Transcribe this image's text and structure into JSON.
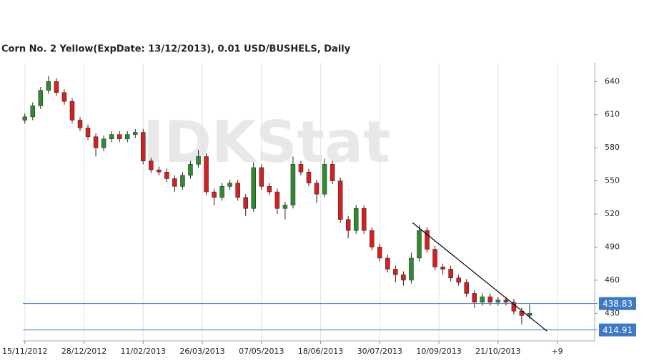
{
  "chart_data": {
    "type": "candlestick",
    "title": "Corn  No. 2 Yellow(ExpDate: 13/12/2013), 0.01 USD/BUSHELS, Daily",
    "watermark": "IDKStat",
    "x": [
      0,
      4,
      8,
      12,
      16,
      20,
      24,
      28,
      32,
      36,
      40,
      44,
      48,
      52,
      56,
      60,
      64,
      68,
      72,
      76,
      80,
      84,
      88,
      92,
      96,
      100,
      104,
      108,
      112,
      116,
      120,
      124,
      128,
      132,
      136,
      140,
      144,
      148,
      152,
      156,
      160,
      164,
      168,
      172,
      176,
      180,
      184,
      188,
      192,
      196,
      200,
      204,
      208,
      212,
      216,
      220,
      224,
      228,
      232,
      236,
      240,
      244,
      248,
      252,
      256
    ],
    "open": [
      605,
      608,
      618,
      632,
      640,
      630,
      622,
      605,
      598,
      590,
      580,
      588,
      592,
      588,
      592,
      594,
      568,
      560,
      558,
      552,
      545,
      555,
      565,
      572,
      540,
      535,
      545,
      548,
      535,
      525,
      562,
      545,
      540,
      525,
      528,
      565,
      558,
      548,
      538,
      565,
      550,
      515,
      505,
      525,
      505,
      490,
      480,
      470,
      465,
      460,
      480,
      505,
      488,
      472,
      470,
      462,
      458,
      448,
      440,
      445,
      440,
      442,
      440,
      432,
      428
    ],
    "high": [
      611,
      621,
      635,
      645,
      643,
      633,
      625,
      608,
      601,
      593,
      591,
      595,
      595,
      595,
      597,
      597,
      571,
      563,
      561,
      555,
      558,
      568,
      578,
      575,
      543,
      548,
      551,
      551,
      538,
      567,
      565,
      548,
      543,
      531,
      572,
      568,
      561,
      551,
      570,
      568,
      553,
      518,
      528,
      528,
      508,
      493,
      483,
      473,
      468,
      485,
      510,
      508,
      491,
      475,
      473,
      465,
      461,
      451,
      448,
      448,
      445,
      445,
      443,
      435,
      438
    ],
    "low": [
      602,
      605,
      615,
      629,
      627,
      619,
      602,
      595,
      587,
      572,
      577,
      585,
      585,
      585,
      589,
      565,
      557,
      555,
      549,
      540,
      542,
      552,
      562,
      537,
      528,
      532,
      542,
      532,
      518,
      522,
      542,
      537,
      520,
      515,
      525,
      555,
      545,
      530,
      535,
      547,
      512,
      498,
      502,
      502,
      487,
      477,
      467,
      458,
      455,
      457,
      477,
      485,
      469,
      465,
      459,
      455,
      445,
      435,
      437,
      437,
      437,
      437,
      429,
      420,
      425
    ],
    "close": [
      608,
      618,
      632,
      640,
      630,
      622,
      605,
      598,
      590,
      580,
      588,
      592,
      588,
      592,
      594,
      568,
      560,
      558,
      552,
      545,
      555,
      565,
      572,
      540,
      535,
      545,
      548,
      535,
      525,
      562,
      545,
      540,
      525,
      528,
      565,
      558,
      548,
      538,
      565,
      550,
      515,
      505,
      525,
      505,
      490,
      480,
      470,
      465,
      460,
      480,
      505,
      488,
      472,
      470,
      462,
      458,
      448,
      440,
      445,
      440,
      442,
      440,
      432,
      428,
      430
    ],
    "up_color": "#2e8b2e",
    "down_color": "#d42020",
    "xlim": [
      -1,
      289
    ],
    "xticks": [
      {
        "value": 0,
        "label": "15/11/2012"
      },
      {
        "value": 30,
        "label": "28/12/2012"
      },
      {
        "value": 60,
        "label": "11/02/2013"
      },
      {
        "value": 90,
        "label": "26/03/2013"
      },
      {
        "value": 120,
        "label": "07/05/2013"
      },
      {
        "value": 150,
        "label": "18/06/2013"
      },
      {
        "value": 180,
        "label": "30/07/2013"
      },
      {
        "value": 210,
        "label": "10/09/2013"
      },
      {
        "value": 240,
        "label": "21/10/2013"
      },
      {
        "value": 270,
        "label": "+9"
      }
    ],
    "ylim": [
      405,
      657
    ],
    "yticks": [
      430,
      460,
      490,
      520,
      550,
      580,
      610,
      640
    ],
    "grid": "x",
    "levels": [
      {
        "value": 438.83,
        "color": "#3a78c8"
      },
      {
        "value": 414.91,
        "color": "#3a78c8"
      }
    ],
    "trendline": {
      "x": [
        196.6,
        264.8
      ],
      "y": [
        512.1,
        413.9
      ],
      "color": "#000000"
    }
  }
}
